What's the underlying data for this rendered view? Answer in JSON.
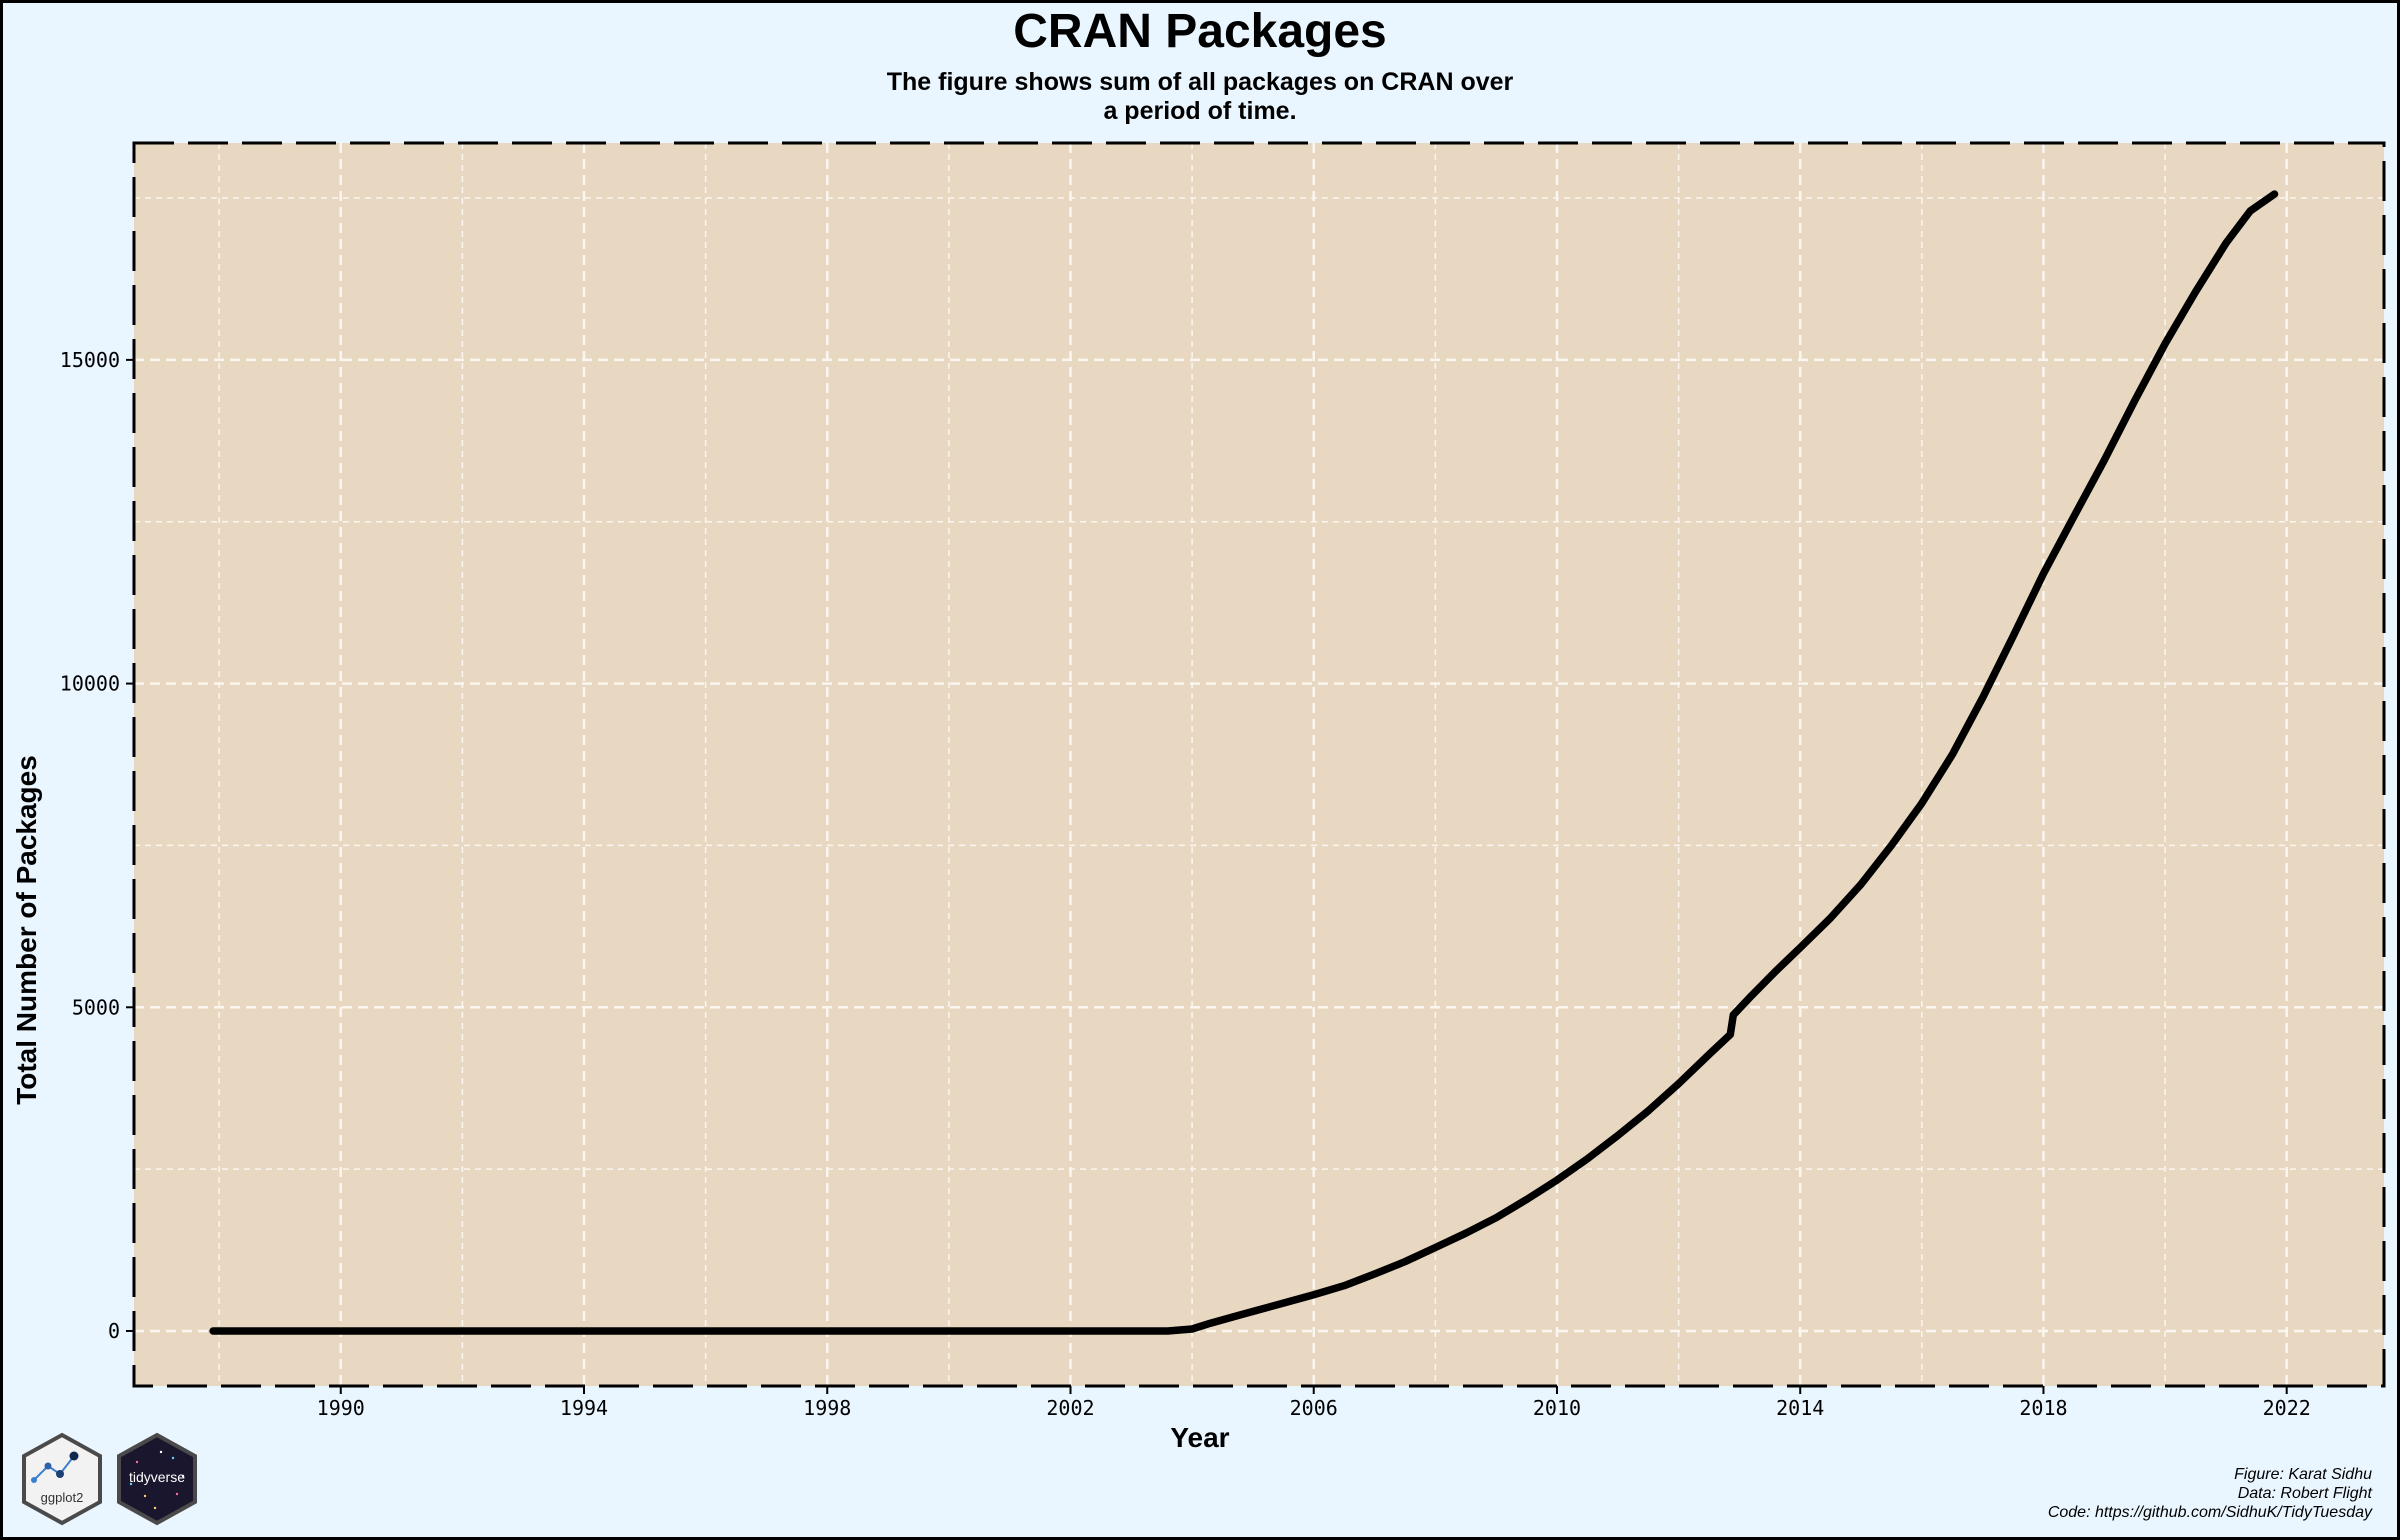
{
  "chart_data": {
    "type": "line",
    "title": "CRAN Packages",
    "subtitle_lines": [
      "The figure shows sum of all packages on CRAN over",
      "a period of time."
    ],
    "xlabel": "Year",
    "ylabel": "Total Number of Packages",
    "xlim": [
      1986.6,
      2023.6
    ],
    "ylim": [
      -850,
      18350
    ],
    "x_ticks": [
      1990,
      1994,
      1998,
      2002,
      2006,
      2010,
      2014,
      2018,
      2022
    ],
    "y_ticks": [
      0,
      5000,
      10000,
      15000
    ],
    "grid": true,
    "series": [
      {
        "color": "#000000",
        "x": [
          1987.9,
          1990,
          1995,
          2000,
          2003.6,
          2004.0,
          2004.3,
          2004.8,
          2005.5,
          2006.0,
          2006.5,
          2007.0,
          2007.5,
          2008.0,
          2008.5,
          2009.0,
          2009.5,
          2010.0,
          2010.5,
          2011.0,
          2011.5,
          2012.0,
          2012.5,
          2012.85,
          2012.9,
          2013.2,
          2013.6,
          2014.0,
          2014.5,
          2015.0,
          2015.5,
          2016.0,
          2016.5,
          2017.0,
          2017.5,
          2018.0,
          2018.5,
          2019.0,
          2019.5,
          2020.0,
          2020.5,
          2021.0,
          2021.4,
          2021.8
        ],
        "y": [
          0,
          0,
          0,
          0,
          0,
          30,
          120,
          250,
          430,
          560,
          700,
          880,
          1070,
          1290,
          1510,
          1750,
          2030,
          2330,
          2660,
          3020,
          3400,
          3820,
          4270,
          4580,
          4880,
          5180,
          5560,
          5920,
          6380,
          6900,
          7500,
          8150,
          8900,
          9780,
          10730,
          11700,
          12580,
          13450,
          14370,
          15250,
          16050,
          16800,
          17300,
          17560
        ]
      }
    ]
  },
  "logos": [
    {
      "name": "ggplot2",
      "label": "ggplot2"
    },
    {
      "name": "tidyverse",
      "label": "tidyverse"
    }
  ],
  "caption": {
    "figure": "Figure: Karat Sidhu",
    "data": "Data: Robert Flight",
    "code": "Code: https://github.com/SidhuK/TidyTuesday"
  },
  "colors": {
    "page_bg": "#eaf6ff",
    "panel_bg": "#e8d8c2",
    "grid": "#fbf6ef",
    "line": "#000000"
  }
}
